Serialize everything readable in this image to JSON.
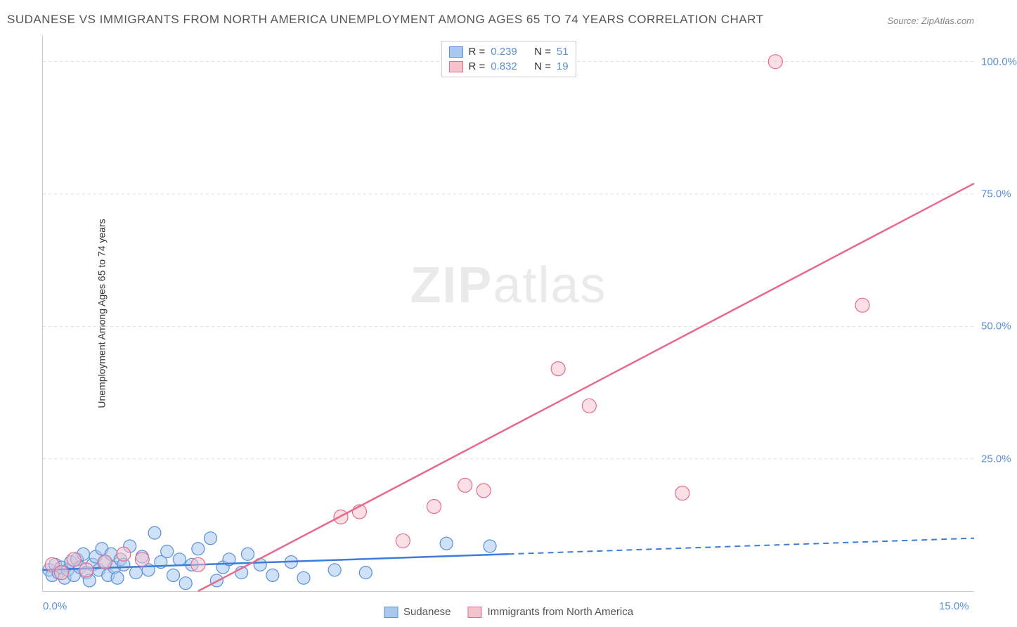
{
  "title": "SUDANESE VS IMMIGRANTS FROM NORTH AMERICA UNEMPLOYMENT AMONG AGES 65 TO 74 YEARS CORRELATION CHART",
  "source": "Source: ZipAtlas.com",
  "y_label": "Unemployment Among Ages 65 to 74 years",
  "watermark_bold": "ZIP",
  "watermark_light": "atlas",
  "chart": {
    "type": "scatter",
    "background_color": "#ffffff",
    "grid_color": "#dddddd",
    "axis_color": "#cccccc",
    "tick_color": "#5b8fd6",
    "xlim": [
      0,
      15
    ],
    "ylim": [
      0,
      105
    ],
    "x_ticks": [
      {
        "pos": 0,
        "label": "0.0%"
      },
      {
        "pos": 15,
        "label": "15.0%"
      }
    ],
    "y_ticks": [
      {
        "pos": 25,
        "label": "25.0%"
      },
      {
        "pos": 50,
        "label": "50.0%"
      },
      {
        "pos": 75,
        "label": "75.0%"
      },
      {
        "pos": 100,
        "label": "100.0%"
      }
    ],
    "series": [
      {
        "name": "Sudanese",
        "color_fill": "#a8c8ee",
        "color_stroke": "#5b8fd6",
        "marker_radius": 9,
        "marker_opacity": 0.55,
        "r_value": "0.239",
        "n_value": "51",
        "trend": {
          "solid": {
            "x1": 0,
            "y1": 4,
            "x2": 7.5,
            "y2": 7
          },
          "dashed": {
            "x1": 7.5,
            "y1": 7,
            "x2": 15,
            "y2": 10
          },
          "color": "#3b7dd8",
          "width": 2.5
        },
        "points": [
          [
            0.1,
            4
          ],
          [
            0.15,
            3
          ],
          [
            0.2,
            5
          ],
          [
            0.25,
            3.5
          ],
          [
            0.3,
            4.5
          ],
          [
            0.35,
            2.5
          ],
          [
            0.4,
            4
          ],
          [
            0.45,
            5.5
          ],
          [
            0.5,
            3
          ],
          [
            0.55,
            6
          ],
          [
            0.6,
            4.5
          ],
          [
            0.65,
            7
          ],
          [
            0.7,
            3.5
          ],
          [
            0.75,
            2
          ],
          [
            0.8,
            5
          ],
          [
            0.85,
            6.5
          ],
          [
            0.9,
            4
          ],
          [
            0.95,
            8
          ],
          [
            1.0,
            5.5
          ],
          [
            1.05,
            3
          ],
          [
            1.1,
            7
          ],
          [
            1.15,
            4.5
          ],
          [
            1.2,
            2.5
          ],
          [
            1.25,
            6
          ],
          [
            1.3,
            5
          ],
          [
            1.4,
            8.5
          ],
          [
            1.5,
            3.5
          ],
          [
            1.6,
            6.5
          ],
          [
            1.7,
            4
          ],
          [
            1.8,
            11
          ],
          [
            1.9,
            5.5
          ],
          [
            2.0,
            7.5
          ],
          [
            2.1,
            3
          ],
          [
            2.2,
            6
          ],
          [
            2.3,
            1.5
          ],
          [
            2.4,
            5
          ],
          [
            2.5,
            8
          ],
          [
            2.7,
            10
          ],
          [
            2.8,
            2
          ],
          [
            2.9,
            4.5
          ],
          [
            3.0,
            6
          ],
          [
            3.2,
            3.5
          ],
          [
            3.3,
            7
          ],
          [
            3.5,
            5
          ],
          [
            3.7,
            3
          ],
          [
            4.0,
            5.5
          ],
          [
            4.2,
            2.5
          ],
          [
            4.7,
            4
          ],
          [
            5.2,
            3.5
          ],
          [
            6.5,
            9
          ],
          [
            7.2,
            8.5
          ]
        ]
      },
      {
        "name": "Immigrants from North America",
        "color_fill": "#f5c2cc",
        "color_stroke": "#e86a8a",
        "marker_radius": 10,
        "marker_opacity": 0.5,
        "r_value": "0.832",
        "n_value": "19",
        "trend": {
          "solid": {
            "x1": 2.5,
            "y1": 0,
            "x2": 15,
            "y2": 77
          },
          "dashed": null,
          "color": "#e86a8a",
          "width": 2.5
        },
        "points": [
          [
            0.15,
            5
          ],
          [
            0.3,
            3.5
          ],
          [
            0.5,
            6
          ],
          [
            0.7,
            4
          ],
          [
            1.0,
            5.5
          ],
          [
            1.3,
            7
          ],
          [
            1.6,
            6
          ],
          [
            2.5,
            5
          ],
          [
            4.8,
            14
          ],
          [
            5.1,
            15
          ],
          [
            5.8,
            9.5
          ],
          [
            6.3,
            16
          ],
          [
            6.8,
            20
          ],
          [
            7.1,
            19
          ],
          [
            8.3,
            42
          ],
          [
            8.8,
            35
          ],
          [
            10.3,
            18.5
          ],
          [
            11.8,
            100
          ],
          [
            13.2,
            54
          ]
        ]
      }
    ]
  },
  "legend_bottom": [
    {
      "label": "Sudanese",
      "fill": "#a8c8ee",
      "stroke": "#5b8fd6"
    },
    {
      "label": "Immigrants from North America",
      "fill": "#f5c2cc",
      "stroke": "#e86a8a"
    }
  ]
}
